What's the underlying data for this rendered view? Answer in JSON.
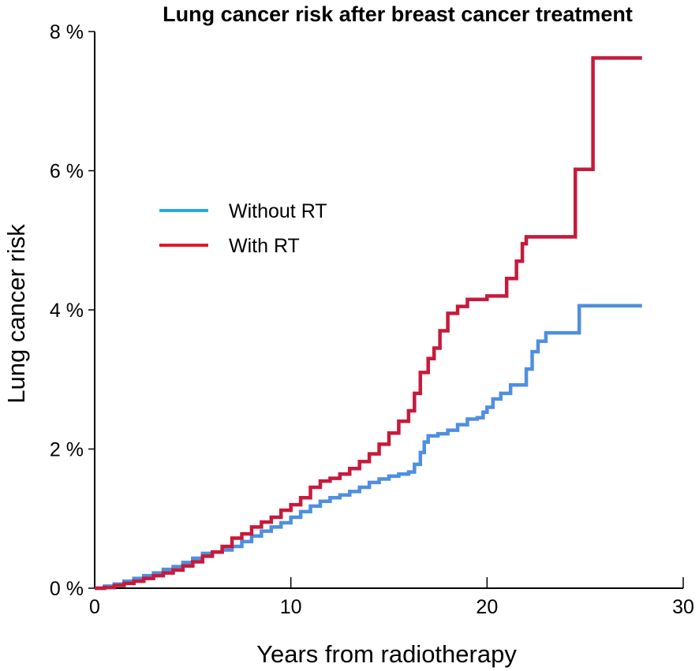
{
  "chart_data": {
    "type": "line",
    "title": "Lung cancer risk after breast cancer treatment",
    "xlabel": "Years from radiotherapy",
    "ylabel": "Lung cancer risk",
    "xlim": [
      0,
      30
    ],
    "ylim": [
      0,
      8
    ],
    "xticks": [
      0,
      10,
      20,
      30
    ],
    "xtick_labels": [
      "0",
      "10",
      "20",
      "30"
    ],
    "yticks": [
      0,
      2,
      4,
      6,
      8
    ],
    "ytick_labels": [
      "0 %",
      "2 %",
      "4 %",
      "6 %",
      "8 %"
    ],
    "grid": false,
    "legend_position": "upper-left",
    "series": [
      {
        "name": "Without RT",
        "color": "#4f8fe0",
        "legend_color": "#2aa7e8",
        "step": true,
        "x": [
          0,
          0.5,
          1,
          1.5,
          2,
          2.5,
          3,
          3.5,
          4,
          4.5,
          5,
          5.5,
          6,
          6.5,
          7,
          7.5,
          8,
          8.5,
          9,
          9.5,
          10,
          10.5,
          11,
          11.5,
          12,
          12.5,
          13,
          13.5,
          14,
          14.5,
          15,
          15.5,
          16,
          16.3,
          16.6,
          16.8,
          17,
          17.5,
          18,
          18.5,
          19,
          19.5,
          19.8,
          20,
          20.3,
          20.7,
          21.2,
          22,
          22.3,
          22.6,
          23,
          24.5,
          24.7,
          27.9
        ],
        "y": [
          0,
          0.03,
          0.06,
          0.1,
          0.14,
          0.18,
          0.22,
          0.27,
          0.31,
          0.37,
          0.43,
          0.5,
          0.52,
          0.55,
          0.6,
          0.67,
          0.75,
          0.82,
          0.88,
          0.94,
          1.02,
          1.1,
          1.18,
          1.25,
          1.3,
          1.34,
          1.39,
          1.45,
          1.52,
          1.57,
          1.61,
          1.64,
          1.67,
          1.78,
          1.95,
          2.1,
          2.19,
          2.22,
          2.27,
          2.35,
          2.43,
          2.45,
          2.53,
          2.6,
          2.72,
          2.8,
          2.92,
          3.15,
          3.4,
          3.55,
          3.67,
          3.67,
          4.06,
          4.06
        ]
      },
      {
        "name": "With RT",
        "color": "#c61a3c",
        "legend_color": "#e3182b",
        "step": true,
        "x": [
          0,
          0.5,
          1,
          1.5,
          2,
          2.5,
          3,
          3.5,
          4,
          4.5,
          5,
          5.5,
          6,
          6.5,
          7,
          7.5,
          8,
          8.5,
          9,
          9.5,
          10,
          10.5,
          11,
          11.5,
          12,
          12.5,
          13,
          13.5,
          14,
          14.5,
          15,
          15.5,
          16,
          16.3,
          16.6,
          17,
          17.3,
          17.6,
          18,
          18.5,
          19,
          20,
          21,
          21.5,
          21.8,
          22,
          24.3,
          24.5,
          25.3,
          25.4,
          27.9
        ],
        "y": [
          0,
          0.01,
          0.04,
          0.07,
          0.1,
          0.14,
          0.18,
          0.22,
          0.26,
          0.32,
          0.38,
          0.46,
          0.52,
          0.6,
          0.72,
          0.78,
          0.88,
          0.95,
          1.02,
          1.12,
          1.2,
          1.3,
          1.45,
          1.54,
          1.58,
          1.64,
          1.72,
          1.82,
          1.93,
          2.07,
          2.23,
          2.4,
          2.55,
          2.8,
          3.1,
          3.3,
          3.45,
          3.7,
          3.95,
          4.05,
          4.15,
          4.2,
          4.45,
          4.7,
          4.95,
          5.05,
          5.05,
          6.02,
          6.02,
          7.62,
          7.62
        ]
      }
    ]
  }
}
